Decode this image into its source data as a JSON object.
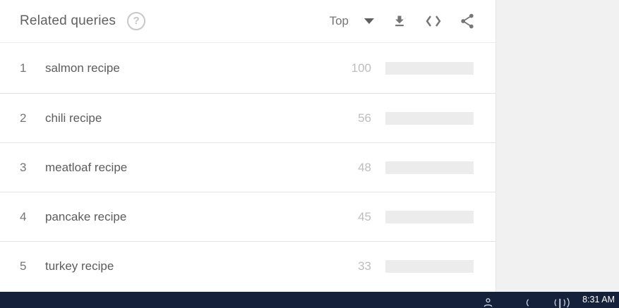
{
  "card": {
    "header": {
      "title": "Related queries",
      "help_glyph": "?",
      "sort_label": "Top"
    }
  },
  "chart_data": {
    "type": "bar",
    "title": "Related queries (Top)",
    "categories": [
      "salmon recipe",
      "chili recipe",
      "meatloaf recipe",
      "pancake recipe",
      "turkey recipe"
    ],
    "values": [
      100,
      56,
      48,
      45,
      33
    ],
    "xlim": [
      0,
      100
    ]
  },
  "queries": {
    "items": [
      {
        "rank": "1",
        "query": "salmon recipe",
        "value": "100",
        "pct": 100
      },
      {
        "rank": "2",
        "query": "chili recipe",
        "value": "56",
        "pct": 56
      },
      {
        "rank": "3",
        "query": "meatloaf recipe",
        "value": "48",
        "pct": 48
      },
      {
        "rank": "4",
        "query": "pancake recipe",
        "value": "45",
        "pct": 45
      },
      {
        "rank": "5",
        "query": "turkey recipe",
        "value": "33",
        "pct": 33
      }
    ]
  },
  "taskbar": {
    "clock": "8:31 AM"
  },
  "colors": {
    "bar_fill": "#4285f4",
    "bar_track": "#ececec",
    "taskbar_bg": "#15203a",
    "title_text": "#616161",
    "value_text": "#bdbdbd"
  }
}
